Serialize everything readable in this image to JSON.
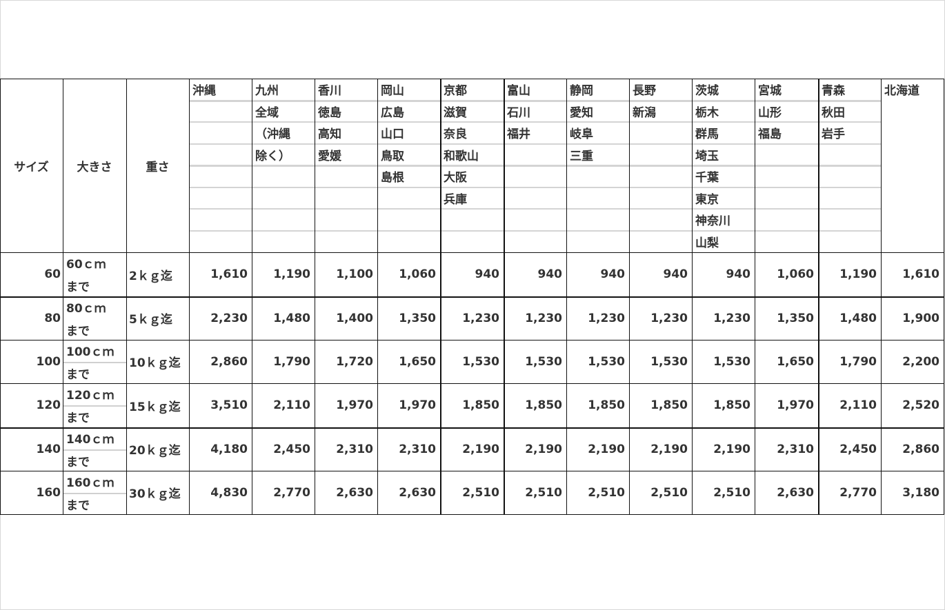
{
  "headers": {
    "size": "サイズ",
    "dimension": "大きさ",
    "weight": "重さ"
  },
  "regions": [
    [
      "沖縄"
    ],
    [
      "九州",
      "全域",
      "（沖縄",
      "除く）"
    ],
    [
      "香川",
      "徳島",
      "高知",
      "愛媛"
    ],
    [
      "岡山",
      "広島",
      "山口",
      "鳥取",
      "島根"
    ],
    [
      "京都",
      "滋賀",
      "奈良",
      "和歌山",
      "大阪",
      "兵庫"
    ],
    [
      "富山",
      "石川",
      "福井"
    ],
    [
      "静岡",
      "愛知",
      "岐阜",
      "三重"
    ],
    [
      "長野",
      "新潟"
    ],
    [
      "茨城",
      "栃木",
      "群馬",
      "埼玉",
      "千葉",
      "東京",
      "神奈川",
      "山梨"
    ],
    [
      "宮城",
      "山形",
      "福島"
    ],
    [
      "青森",
      "秋田",
      "岩手"
    ],
    [
      "北海道"
    ]
  ],
  "rows": [
    {
      "size": "60",
      "dim": "60ｃｍ",
      "dim2": "まで",
      "weight": "2ｋｇ迄",
      "prices": [
        "1,610",
        "1,190",
        "1,100",
        "1,060",
        "940",
        "940",
        "940",
        "940",
        "940",
        "1,060",
        "1,190",
        "1,610"
      ]
    },
    {
      "size": "80",
      "dim": "80ｃｍ",
      "dim2": "まで",
      "weight": "5ｋｇ迄",
      "prices": [
        "2,230",
        "1,480",
        "1,400",
        "1,350",
        "1,230",
        "1,230",
        "1,230",
        "1,230",
        "1,230",
        "1,350",
        "1,480",
        "1,900"
      ]
    },
    {
      "size": "100",
      "dim": "100ｃｍ",
      "dim2": "まで",
      "weight": "10ｋｇ迄",
      "prices": [
        "2,860",
        "1,790",
        "1,720",
        "1,650",
        "1,530",
        "1,530",
        "1,530",
        "1,530",
        "1,530",
        "1,650",
        "1,790",
        "2,200"
      ]
    },
    {
      "size": "120",
      "dim": "120ｃｍ",
      "dim2": "まで",
      "weight": "15ｋｇ迄",
      "prices": [
        "3,510",
        "2,110",
        "1,970",
        "1,970",
        "1,850",
        "1,850",
        "1,850",
        "1,850",
        "1,850",
        "1,970",
        "2,110",
        "2,520"
      ]
    },
    {
      "size": "140",
      "dim": "140ｃｍ",
      "dim2": "まで",
      "weight": "20ｋｇ迄",
      "prices": [
        "4,180",
        "2,450",
        "2,310",
        "2,310",
        "2,190",
        "2,190",
        "2,190",
        "2,190",
        "2,190",
        "2,310",
        "2,450",
        "2,860"
      ]
    },
    {
      "size": "160",
      "dim": "160ｃｍ",
      "dim2": "まで",
      "weight": "30ｋｇ迄",
      "prices": [
        "4,830",
        "2,770",
        "2,630",
        "2,630",
        "2,510",
        "2,510",
        "2,510",
        "2,510",
        "2,510",
        "2,630",
        "2,770",
        "3,180"
      ]
    }
  ]
}
